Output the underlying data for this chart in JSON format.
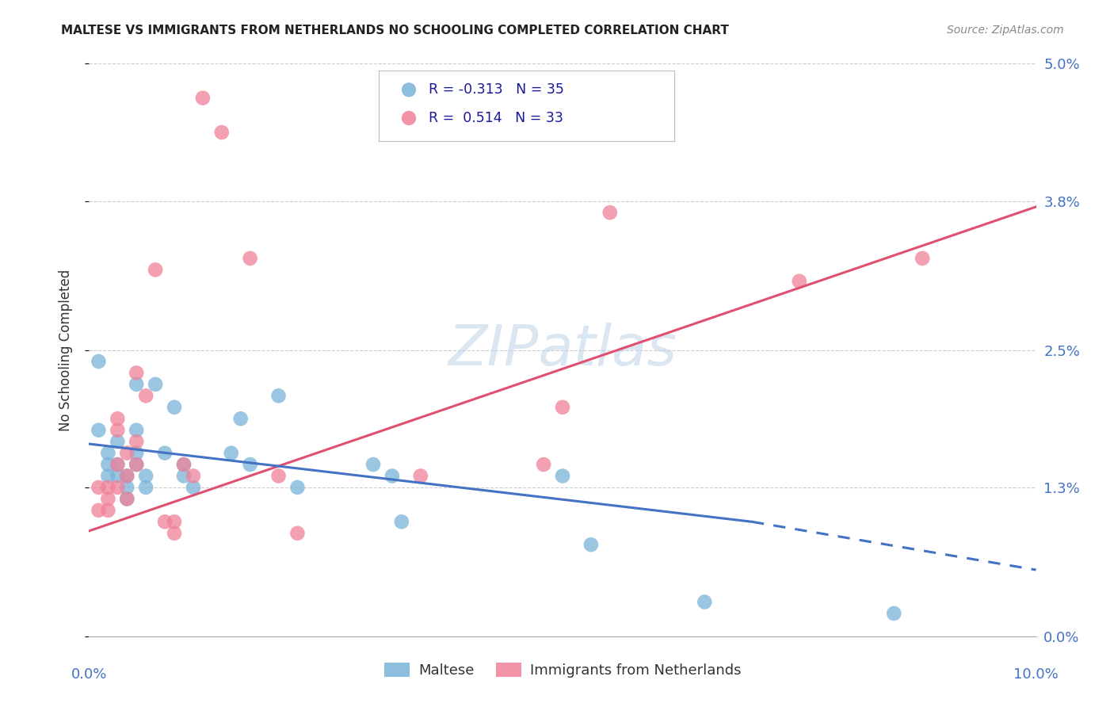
{
  "title": "MALTESE VS IMMIGRANTS FROM NETHERLANDS NO SCHOOLING COMPLETED CORRELATION CHART",
  "source": "Source: ZipAtlas.com",
  "ylabel": "No Schooling Completed",
  "legend_entries": [
    {
      "label": "Maltese",
      "color": "#a8c4e0",
      "R": "-0.313",
      "N": "35"
    },
    {
      "label": "Immigrants from Netherlands",
      "color": "#f4a0b0",
      "R": "0.514",
      "N": "33"
    }
  ],
  "maltese_scatter": [
    [
      0.001,
      0.024
    ],
    [
      0.001,
      0.018
    ],
    [
      0.002,
      0.016
    ],
    [
      0.002,
      0.015
    ],
    [
      0.002,
      0.014
    ],
    [
      0.003,
      0.017
    ],
    [
      0.003,
      0.015
    ],
    [
      0.003,
      0.014
    ],
    [
      0.004,
      0.014
    ],
    [
      0.004,
      0.013
    ],
    [
      0.004,
      0.012
    ],
    [
      0.005,
      0.022
    ],
    [
      0.005,
      0.018
    ],
    [
      0.005,
      0.016
    ],
    [
      0.005,
      0.015
    ],
    [
      0.006,
      0.014
    ],
    [
      0.006,
      0.013
    ],
    [
      0.007,
      0.022
    ],
    [
      0.008,
      0.016
    ],
    [
      0.009,
      0.02
    ],
    [
      0.01,
      0.015
    ],
    [
      0.01,
      0.014
    ],
    [
      0.011,
      0.013
    ],
    [
      0.015,
      0.016
    ],
    [
      0.016,
      0.019
    ],
    [
      0.017,
      0.015
    ],
    [
      0.02,
      0.021
    ],
    [
      0.022,
      0.013
    ],
    [
      0.03,
      0.015
    ],
    [
      0.032,
      0.014
    ],
    [
      0.033,
      0.01
    ],
    [
      0.05,
      0.014
    ],
    [
      0.053,
      0.008
    ],
    [
      0.065,
      0.003
    ],
    [
      0.085,
      0.002
    ]
  ],
  "netherlands_scatter": [
    [
      0.001,
      0.011
    ],
    [
      0.001,
      0.013
    ],
    [
      0.002,
      0.013
    ],
    [
      0.002,
      0.012
    ],
    [
      0.002,
      0.011
    ],
    [
      0.003,
      0.019
    ],
    [
      0.003,
      0.018
    ],
    [
      0.003,
      0.015
    ],
    [
      0.003,
      0.013
    ],
    [
      0.004,
      0.016
    ],
    [
      0.004,
      0.014
    ],
    [
      0.004,
      0.012
    ],
    [
      0.005,
      0.023
    ],
    [
      0.005,
      0.017
    ],
    [
      0.005,
      0.015
    ],
    [
      0.006,
      0.021
    ],
    [
      0.007,
      0.032
    ],
    [
      0.008,
      0.01
    ],
    [
      0.009,
      0.01
    ],
    [
      0.009,
      0.009
    ],
    [
      0.01,
      0.015
    ],
    [
      0.011,
      0.014
    ],
    [
      0.012,
      0.047
    ],
    [
      0.014,
      0.044
    ],
    [
      0.017,
      0.033
    ],
    [
      0.02,
      0.014
    ],
    [
      0.022,
      0.009
    ],
    [
      0.035,
      0.014
    ],
    [
      0.048,
      0.015
    ],
    [
      0.05,
      0.02
    ],
    [
      0.055,
      0.037
    ],
    [
      0.075,
      0.031
    ],
    [
      0.088,
      0.033
    ]
  ],
  "maltese_line_solid": [
    [
      0.0,
      0.0168
    ],
    [
      0.07,
      0.01
    ]
  ],
  "maltese_line_dashed": [
    [
      0.07,
      0.01
    ],
    [
      0.1,
      0.0058
    ]
  ],
  "netherlands_line": [
    [
      0.0,
      0.0092
    ],
    [
      0.1,
      0.0375
    ]
  ],
  "scatter_size": 180,
  "watermark": "ZIPatlas",
  "xlim": [
    0.0,
    0.1
  ],
  "ylim": [
    0.0,
    0.05
  ],
  "yticks": [
    0.0,
    0.013,
    0.025,
    0.038,
    0.05
  ],
  "ytick_labels": [
    "0.0%",
    "1.3%",
    "2.5%",
    "3.8%",
    "5.0%"
  ],
  "xticks": [
    0.0,
    0.02,
    0.04,
    0.06,
    0.08,
    0.1
  ],
  "xtick_labels_show": [
    "0.0%",
    "10.0%"
  ],
  "blue_color": "#7ab3d9",
  "pink_color": "#f08098",
  "blue_line_color": "#4472c4",
  "pink_line_color": "#e05070",
  "axis_color": "#4472c4",
  "grid_color": "#c8c8c8",
  "background_color": "#ffffff",
  "title_fontsize": 11,
  "source_fontsize": 10,
  "label_fontsize": 13,
  "ylabel_fontsize": 12
}
